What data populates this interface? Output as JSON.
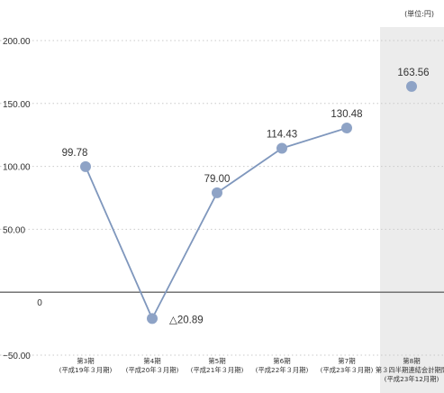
{
  "chart_data": {
    "type": "line",
    "unit_label": "(単位:円)",
    "ylim": [
      -50,
      200
    ],
    "y_ticks": [
      {
        "value": 200,
        "label": "200.00"
      },
      {
        "value": 150,
        "label": "150.00"
      },
      {
        "value": 100,
        "label": "100.00"
      },
      {
        "value": 50,
        "label": "50.00"
      },
      {
        "value": 0,
        "label": "0"
      },
      {
        "value": -50,
        "label": "−50.00"
      }
    ],
    "categories": [
      {
        "line1": "第3期",
        "line2": "(平成19年３月期)"
      },
      {
        "line1": "第4期",
        "line2": "(平成20年３月期)"
      },
      {
        "line1": "第5期",
        "line2": "(平成21年３月期)"
      },
      {
        "line1": "第6期",
        "line2": "(平成22年３月期)"
      },
      {
        "line1": "第7期",
        "line2": "(平成23年３月期)"
      },
      {
        "line1": "第8期",
        "line2": "第３四半期連結会計期間",
        "line3": "(平成23年12月期)"
      }
    ],
    "series": [
      {
        "values": [
          99.78,
          -20.89,
          79.0,
          114.43,
          130.48,
          163.56
        ],
        "labels": [
          "99.78",
          "△20.89",
          "79.00",
          "114.43",
          "130.48",
          "163.56"
        ],
        "connected_points": 5
      }
    ],
    "highlighted_category_index": 5,
    "grid": true,
    "colors": {
      "line": "#7f97bd",
      "marker": "#8ea3c6",
      "grid": "#c9c9c9",
      "zero_line": "#666666",
      "highlight": "#ececec",
      "text": "#333333"
    }
  }
}
